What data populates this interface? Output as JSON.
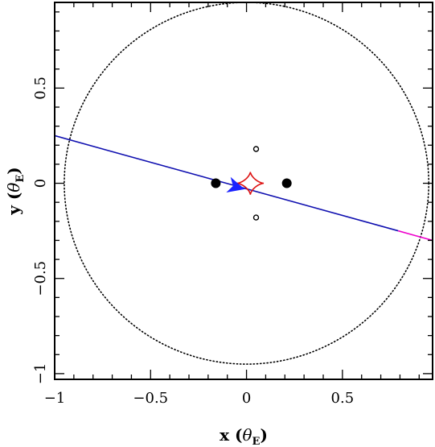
{
  "chart_data": {
    "type": "line",
    "xlabel": {
      "main": "x",
      "symbol": "θ",
      "subscript": "E"
    },
    "ylabel": {
      "main": "y",
      "symbol": "θ",
      "subscript": "E"
    },
    "xlim": [
      -1.0,
      0.97
    ],
    "ylim": [
      -1.03,
      0.95
    ],
    "xticks": [
      {
        "value": -1.0,
        "label": "−1"
      },
      {
        "value": -0.5,
        "label": "−0.5"
      },
      {
        "value": 0.0,
        "label": "0"
      },
      {
        "value": 0.5,
        "label": "0.5"
      }
    ],
    "yticks": [
      {
        "value": -1.0,
        "label": "−1"
      },
      {
        "value": -0.5,
        "label": "−0.5"
      },
      {
        "value": 0.0,
        "label": "0"
      },
      {
        "value": 0.5,
        "label": "0.5"
      }
    ],
    "einstein_ring": {
      "radius": 0.95,
      "style": "dotted",
      "color": "#000000"
    },
    "trajectory": {
      "start": [
        -1.0,
        0.25
      ],
      "end": [
        0.97,
        -0.3
      ],
      "inner_segment_x": [
        -1.0,
        0.79
      ],
      "arrow_at": [
        -0.05,
        -0.02
      ],
      "color_inner": "#1010b0",
      "color_outer": "#ee00cc",
      "arrow_color": "#1a22ff"
    },
    "caustic": {
      "center": [
        0.02,
        0.0
      ],
      "half_width_x": 0.07,
      "half_height_y": 0.06,
      "color": "#dd1111"
    },
    "lenses": [
      {
        "x": -0.16,
        "y": 0.0,
        "kind": "filled-large"
      },
      {
        "x": 0.21,
        "y": 0.0,
        "kind": "filled-large"
      }
    ],
    "images": [
      {
        "x": 0.05,
        "y": 0.18,
        "kind": "open-small"
      },
      {
        "x": 0.05,
        "y": -0.18,
        "kind": "open-small"
      }
    ]
  }
}
